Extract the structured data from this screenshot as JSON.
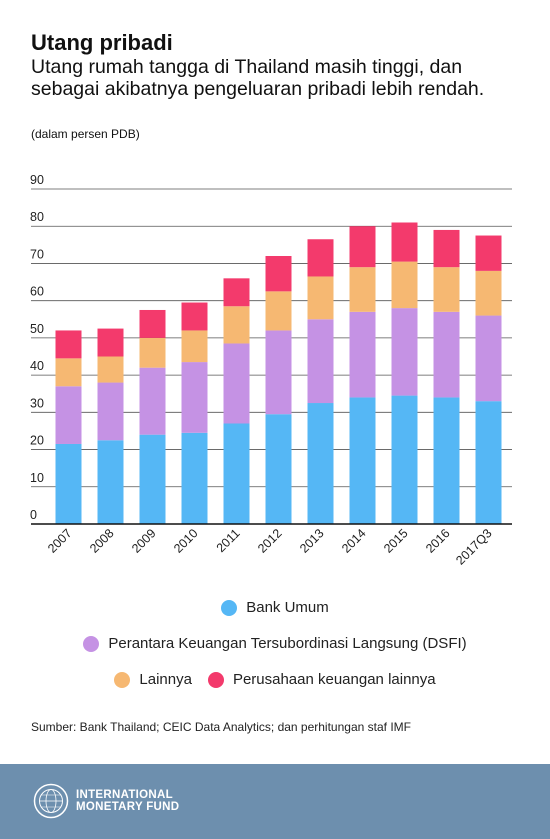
{
  "header": {
    "title": "Utang pribadi",
    "subtitle": "Utang rumah tangga di Thailand masih tinggi, dan sebagai akibatnya pengeluaran pribadi lebih rendah.",
    "unit": "(dalam persen PDB)"
  },
  "legend": {
    "bank": "Bank Umum",
    "dsfi": "Perantara Keuangan Tersubordinasi Langsung (DSFI)",
    "other": "Lainnya",
    "fin": "Perusahaan keuangan lainnya"
  },
  "source": "Sumber: Bank Thailand; CEIC Data Analytics; dan perhitungan staf IMF",
  "footer": {
    "line1": "INTERNATIONAL",
    "line2": "MONETARY FUND",
    "logo_icon": "imf-seal-icon",
    "background_color": "#6d8fae"
  },
  "chart_data": {
    "type": "bar",
    "stacked": true,
    "categories": [
      "2007",
      "2008",
      "2009",
      "2010",
      "2011",
      "2012",
      "2013",
      "2014",
      "2015",
      "2016",
      "2017Q3"
    ],
    "series": [
      {
        "name": "Bank Umum",
        "color": "#55b7f5",
        "values": [
          21.5,
          22.5,
          24.0,
          24.5,
          27.0,
          29.5,
          32.5,
          34.0,
          34.5,
          34.0,
          33.0
        ]
      },
      {
        "name": "Perantara Keuangan Tersubordinasi Langsung (DSFI)",
        "color": "#c592e4",
        "values": [
          15.5,
          15.5,
          18.0,
          19.0,
          21.5,
          22.5,
          22.5,
          23.0,
          23.5,
          23.0,
          23.0
        ]
      },
      {
        "name": "Lainnya",
        "color": "#f6b872",
        "values": [
          7.5,
          7.0,
          8.0,
          8.5,
          10.0,
          10.5,
          11.5,
          12.0,
          12.5,
          12.0,
          12.0
        ]
      },
      {
        "name": "Perusahaan keuangan lainnya",
        "color": "#f33a6c",
        "values": [
          7.5,
          7.5,
          7.5,
          7.5,
          7.5,
          9.5,
          10.0,
          11.0,
          10.5,
          10.0,
          9.5
        ]
      }
    ],
    "y_ticks": [
      0,
      10,
      20,
      30,
      40,
      50,
      60,
      70,
      80,
      90
    ],
    "ylim": [
      0,
      90
    ],
    "grid": true,
    "legend_position": "bottom"
  }
}
